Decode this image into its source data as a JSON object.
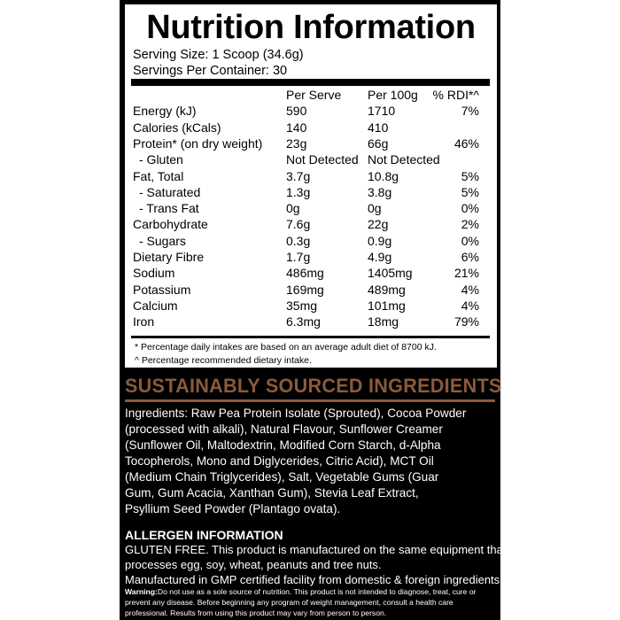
{
  "title": "Nutrition Information",
  "serving_size": "Serving Size: 1 Scoop (34.6g)",
  "servings_per_container": "Servings Per Container: 30",
  "table": {
    "headers": [
      "",
      "Per Serve",
      "Per 100g",
      "% RDI*^"
    ],
    "rows": [
      [
        "Energy (kJ)",
        "590",
        "1710",
        "7%"
      ],
      [
        "Calories (kCals)",
        "140",
        "410",
        ""
      ],
      [
        "Protein* (on dry weight)",
        "23g",
        "66g",
        "46%"
      ],
      [
        "  - Gluten",
        "Not Detected",
        "Not Detected",
        ""
      ],
      [
        "Fat, Total",
        "3.7g",
        "10.8g",
        "5%"
      ],
      [
        "  - Saturated",
        "1.3g",
        "3.8g",
        "5%"
      ],
      [
        "  - Trans Fat",
        "0g",
        "0g",
        "0%"
      ],
      [
        "Carbohydrate",
        "7.6g",
        "22g",
        "2%"
      ],
      [
        "  - Sugars",
        "0.3g",
        "0.9g",
        "0%"
      ],
      [
        "Dietary Fibre",
        "1.7g",
        "4.9g",
        "6%"
      ],
      [
        "Sodium",
        "486mg",
        "1405mg",
        "21%"
      ],
      [
        "Potassium",
        "169mg",
        "489mg",
        "4%"
      ],
      [
        "Calcium",
        "35mg",
        "101mg",
        "4%"
      ],
      [
        "Iron",
        "6.3mg",
        "18mg",
        "79%"
      ]
    ]
  },
  "footnotes": [
    "* Percentage daily intakes are based on an average adult diet of 8700 kJ.",
    "^ Percentage recommended dietary intake."
  ],
  "ingredients_heading": "SUSTAINABLY SOURCED INGREDIENTS",
  "ingredients_lines": [
    "Ingredients: Raw Pea Protein Isolate (Sprouted), Cocoa Powder",
    "(processed with alkali), Natural Flavour, Sunflower Creamer",
    "(Sunflower Oil, Maltodextrin, Modified Corn Starch, d-Alpha",
    "Tocopherols, Mono and Diglycerides, Citric Acid), MCT Oil",
    "(Medium Chain Triglycerides), Salt, Vegetable Gums (Guar",
    "Gum, Gum Acacia, Xanthan Gum), Stevia Leaf Extract,",
    "Psyllium Seed Powder (Plantago ovata)."
  ],
  "allergen_heading": "ALLERGEN INFORMATION",
  "allergen_lines": [
    "GLUTEN FREE. This product is manufactured on the same equipment that",
    "processes egg, soy, wheat, peanuts and tree nuts.",
    "Manufactured in GMP certified facility from domestic & foreign ingredients."
  ],
  "warning_label": "Warning:",
  "warning_lines": [
    " Do not use as a sole source of nutrition. This product is not intended to diagnose, treat, cure or",
    "prevent any disease. Before beginning any program of weight management, consult a health care",
    "professional. Results from using this product may vary from person to person."
  ],
  "colors": {
    "accent_brown": "#8b5a3c",
    "panel": "#000000"
  }
}
